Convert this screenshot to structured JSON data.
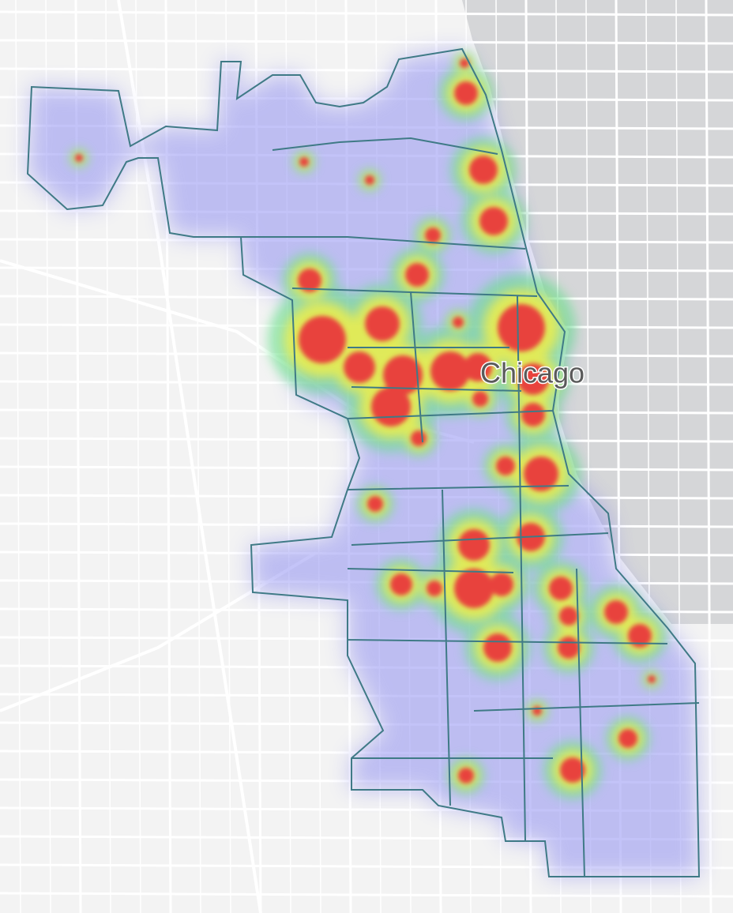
{
  "map": {
    "label": "Chicago"
  }
}
